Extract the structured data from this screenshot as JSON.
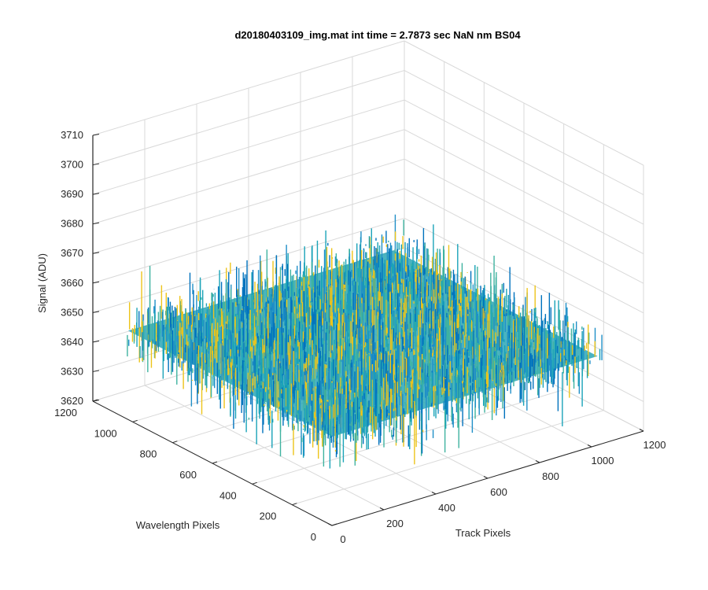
{
  "chart_data": {
    "type": "surface",
    "title": "d20180403109_img.mat int time = 2.7873 sec  NaN nm BS04",
    "xlabel": "Track Pixels",
    "ylabel": "Wavelength Pixels",
    "zlabel": "Signal (ADU)",
    "xlim": [
      0,
      1200
    ],
    "ylim": [
      0,
      1200
    ],
    "zlim": [
      3620,
      3710
    ],
    "x_ticks": [
      "0",
      "200",
      "400",
      "600",
      "800",
      "1000",
      "1200"
    ],
    "y_ticks": [
      "0",
      "200",
      "400",
      "600",
      "800",
      "1000",
      "1200"
    ],
    "z_ticks": [
      "3620",
      "3630",
      "3640",
      "3650",
      "3660",
      "3670",
      "3680",
      "3690",
      "3700",
      "3710"
    ],
    "data_extent": {
      "x": [
        1,
        1024
      ],
      "y": [
        1,
        1024
      ]
    },
    "signal_mean": 3650,
    "signal_noise_range": [
      3625,
      3690
    ],
    "grid": true,
    "colors": {
      "low": "#0072bd",
      "mid": "#1aa3b8",
      "high": "#edc41a",
      "grid": "#d9d9d9",
      "axis": "#262626"
    }
  }
}
